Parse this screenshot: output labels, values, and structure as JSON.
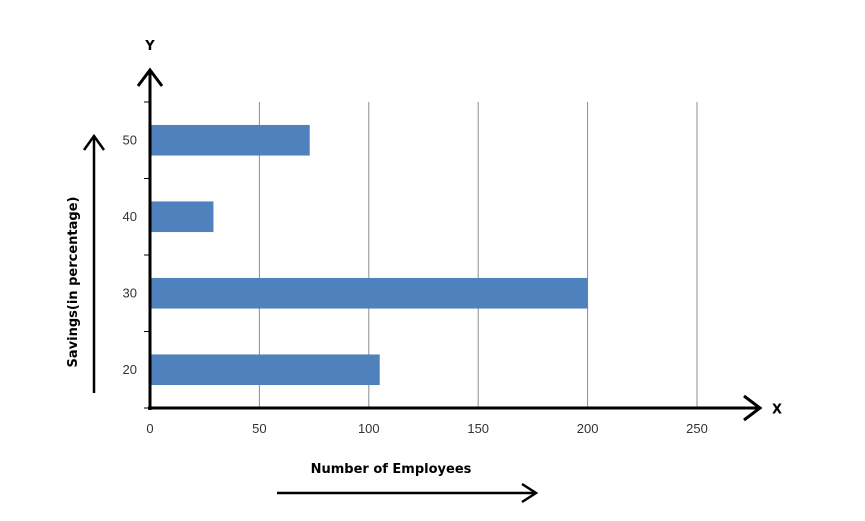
{
  "chart_data": {
    "type": "bar",
    "orientation": "horizontal",
    "categories": [
      "20",
      "30",
      "40",
      "50"
    ],
    "values": [
      105,
      200,
      29,
      73
    ],
    "xlabel": "Number of Employees",
    "ylabel": "Savings(in percentage)",
    "x_axis_name": "X",
    "y_axis_name": "Y",
    "xlim": [
      0,
      250
    ],
    "x_ticks": [
      "0",
      "50",
      "100",
      "150",
      "200",
      "250"
    ],
    "grid": "vertical",
    "bar_color": "#4f81bd",
    "grid_color": "#8c8c8c",
    "axis_color": "#000000"
  }
}
